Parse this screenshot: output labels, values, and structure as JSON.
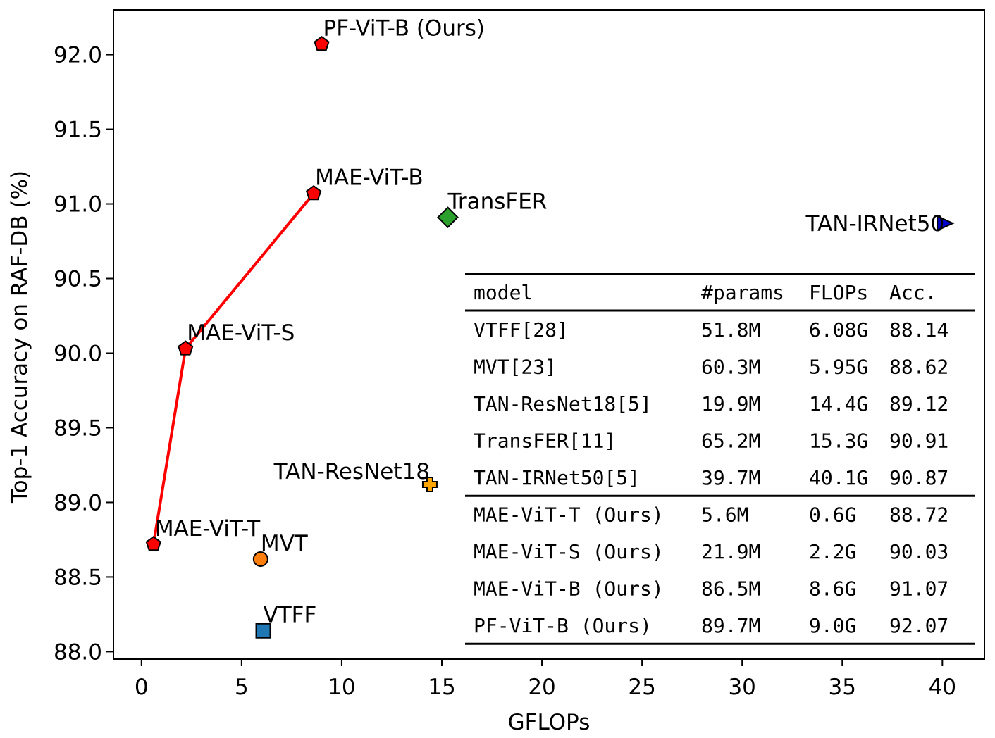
{
  "chart_data": {
    "type": "scatter",
    "xlabel": "GFLOPs",
    "ylabel": "Top-1 Accuracy on RAF-DB (%)",
    "xlim": [
      -1.4,
      42.1
    ],
    "ylim": [
      87.95,
      92.3
    ],
    "xticks": [
      0,
      5,
      10,
      15,
      20,
      25,
      30,
      35,
      40
    ],
    "xtick_labels": [
      "0",
      "5",
      "10",
      "15",
      "20",
      "25",
      "30",
      "35",
      "40"
    ],
    "yticks": [
      88.0,
      88.5,
      89.0,
      89.5,
      90.0,
      90.5,
      91.0,
      91.5,
      92.0
    ],
    "ytick_labels": [
      "88.0",
      "88.5",
      "89.0",
      "89.5",
      "90.0",
      "90.5",
      "91.0",
      "91.5",
      "92.0"
    ],
    "grid": false,
    "points": [
      {
        "label": "PF-ViT-B (Ours)",
        "x": 9.0,
        "y": 92.07,
        "marker": "pentagon",
        "color": "#ff0000",
        "label_pos": "above"
      },
      {
        "label": "MAE-ViT-B",
        "x": 8.6,
        "y": 91.07,
        "marker": "pentagon",
        "color": "#ff0000",
        "label_pos": "above"
      },
      {
        "label": "MAE-ViT-S",
        "x": 2.2,
        "y": 90.03,
        "marker": "pentagon",
        "color": "#ff0000",
        "label_pos": "above"
      },
      {
        "label": "MAE-ViT-T",
        "x": 0.6,
        "y": 88.72,
        "marker": "pentagon",
        "color": "#ff0000",
        "label_pos": "above"
      },
      {
        "label": "TransFER",
        "x": 15.3,
        "y": 90.91,
        "marker": "diamond",
        "color": "#2ca02c",
        "label_pos": "above"
      },
      {
        "label": "TAN-IRNet50",
        "x": 40.1,
        "y": 90.87,
        "marker": "triangle-right",
        "color": "#0000cc",
        "label_pos": "left"
      },
      {
        "label": "TAN-ResNet18",
        "x": 14.4,
        "y": 89.12,
        "marker": "plus",
        "color": "#ffa500",
        "label_pos": "left"
      },
      {
        "label": "MVT",
        "x": 5.95,
        "y": 88.62,
        "marker": "circle",
        "color": "#ff7f0e",
        "label_pos": "above"
      },
      {
        "label": "VTFF",
        "x": 6.08,
        "y": 88.14,
        "marker": "square",
        "color": "#1f77b4",
        "label_pos": "above"
      }
    ],
    "line_series": {
      "color": "#ff0000",
      "x": [
        0.6,
        2.2,
        8.6
      ],
      "y": [
        88.72,
        90.03,
        91.07
      ]
    },
    "table": {
      "headers": [
        "model",
        "#params",
        "FLOPs",
        "Acc."
      ],
      "rows": [
        [
          "VTFF[28]",
          "51.8M",
          "6.08G",
          "88.14"
        ],
        [
          "MVT[23]",
          "60.3M",
          "5.95G",
          "88.62"
        ],
        [
          "TAN-ResNet18[5]",
          "19.9M",
          "14.4G",
          "89.12"
        ],
        [
          "TransFER[11]",
          "65.2M",
          "15.3G",
          "90.91"
        ],
        [
          "TAN-IRNet50[5]",
          "39.7M",
          "40.1G",
          "90.87"
        ],
        [
          "MAE-ViT-T (Ours)",
          "5.6M",
          "0.6G",
          "88.72"
        ],
        [
          "MAE-ViT-S (Ours)",
          "21.9M",
          "2.2G",
          "90.03"
        ],
        [
          "MAE-ViT-B (Ours)",
          "86.5M",
          "8.6G",
          "91.07"
        ],
        [
          "PF-ViT-B (Ours)",
          "89.7M",
          "9.0G",
          "92.07"
        ]
      ]
    }
  }
}
